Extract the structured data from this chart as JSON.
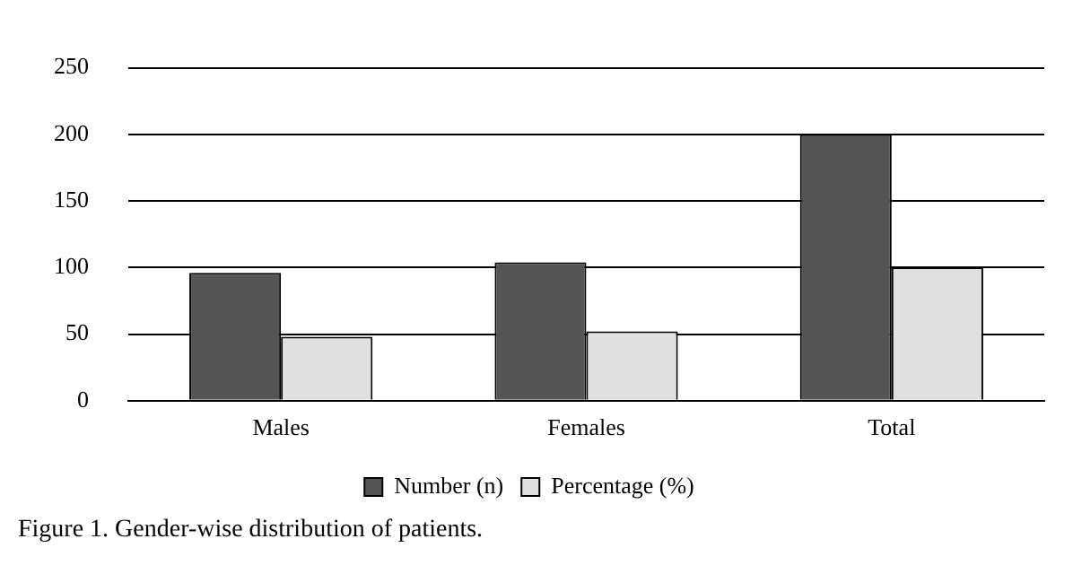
{
  "chart_data": {
    "type": "bar",
    "categories": [
      "Males",
      "Females",
      "Total"
    ],
    "series": [
      {
        "name": "Number (n)",
        "color": "#555555",
        "values": [
          96,
          104,
          200
        ]
      },
      {
        "name": "Percentage (%)",
        "color": "#e0e0e0",
        "values": [
          48,
          52,
          100
        ]
      }
    ],
    "ylim": [
      0,
      250
    ],
    "yticks": [
      0,
      50,
      100,
      150,
      200,
      250
    ],
    "grid": "y",
    "legend": "bottom",
    "annotations": [
      "Figure 1. Gender-wise distribution of patients."
    ]
  }
}
